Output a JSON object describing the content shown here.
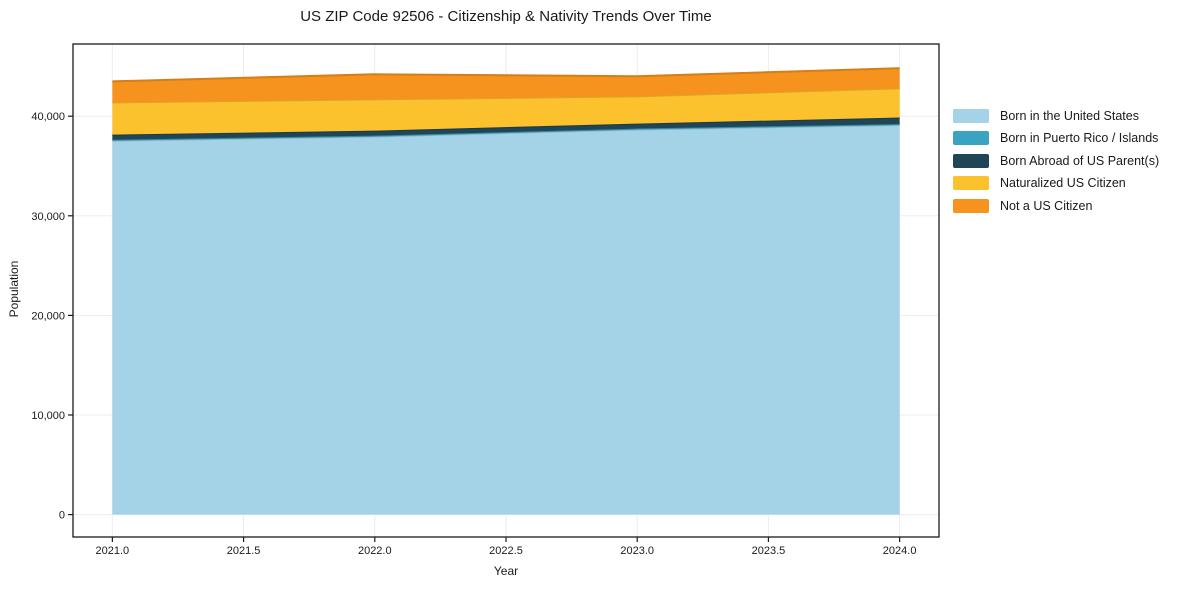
{
  "figure": {
    "title": "US ZIP Code 92506 - Citizenship & Nativity Trends Over Time"
  },
  "chart_data": {
    "type": "area",
    "stacked": true,
    "title": "US ZIP Code 92506 - Citizenship & Nativity Trends Over Time",
    "xlabel": "Year",
    "ylabel": "Population",
    "x": [
      2021,
      2022,
      2023,
      2024
    ],
    "series": [
      {
        "name": "Born in the United States",
        "color": "#a4d2e6",
        "values": [
          37550,
          37960,
          38670,
          39120
        ]
      },
      {
        "name": "Born in Puerto Rico / Islands",
        "color": "#3aa3c2",
        "values": [
          90,
          90,
          90,
          95
        ]
      },
      {
        "name": "Born Abroad of US Parent(s)",
        "color": "#1f4557",
        "values": [
          510,
          500,
          500,
          655
        ]
      },
      {
        "name": "Naturalized US Citizen",
        "color": "#fcc22d",
        "values": [
          3230,
          3140,
          2730,
          2930
        ]
      },
      {
        "name": "Not a US Citizen",
        "color": "#f6921e",
        "values": [
          2120,
          2520,
          2020,
          2020
        ]
      }
    ],
    "totals": [
      43500,
      44210,
      44010,
      44820
    ],
    "x_tick_values": [
      2021.0,
      2021.5,
      2022.0,
      2022.5,
      2023.0,
      2023.5,
      2024.0
    ],
    "x_tick_labels": [
      "2021.0",
      "2021.5",
      "2022.0",
      "2022.5",
      "2023.0",
      "2023.5",
      "2024.0"
    ],
    "y_tick_values": [
      0,
      10000,
      20000,
      30000,
      40000
    ],
    "y_tick_labels": [
      "0",
      "10,000",
      "20,000",
      "30,000",
      "40,000"
    ],
    "xlim": [
      2020.85,
      2024.15
    ],
    "ylim": [
      -2250,
      47250
    ],
    "grid": true,
    "grid_color": "#ededed",
    "spine_color": "#1a1a1a",
    "legend_position": "right"
  }
}
